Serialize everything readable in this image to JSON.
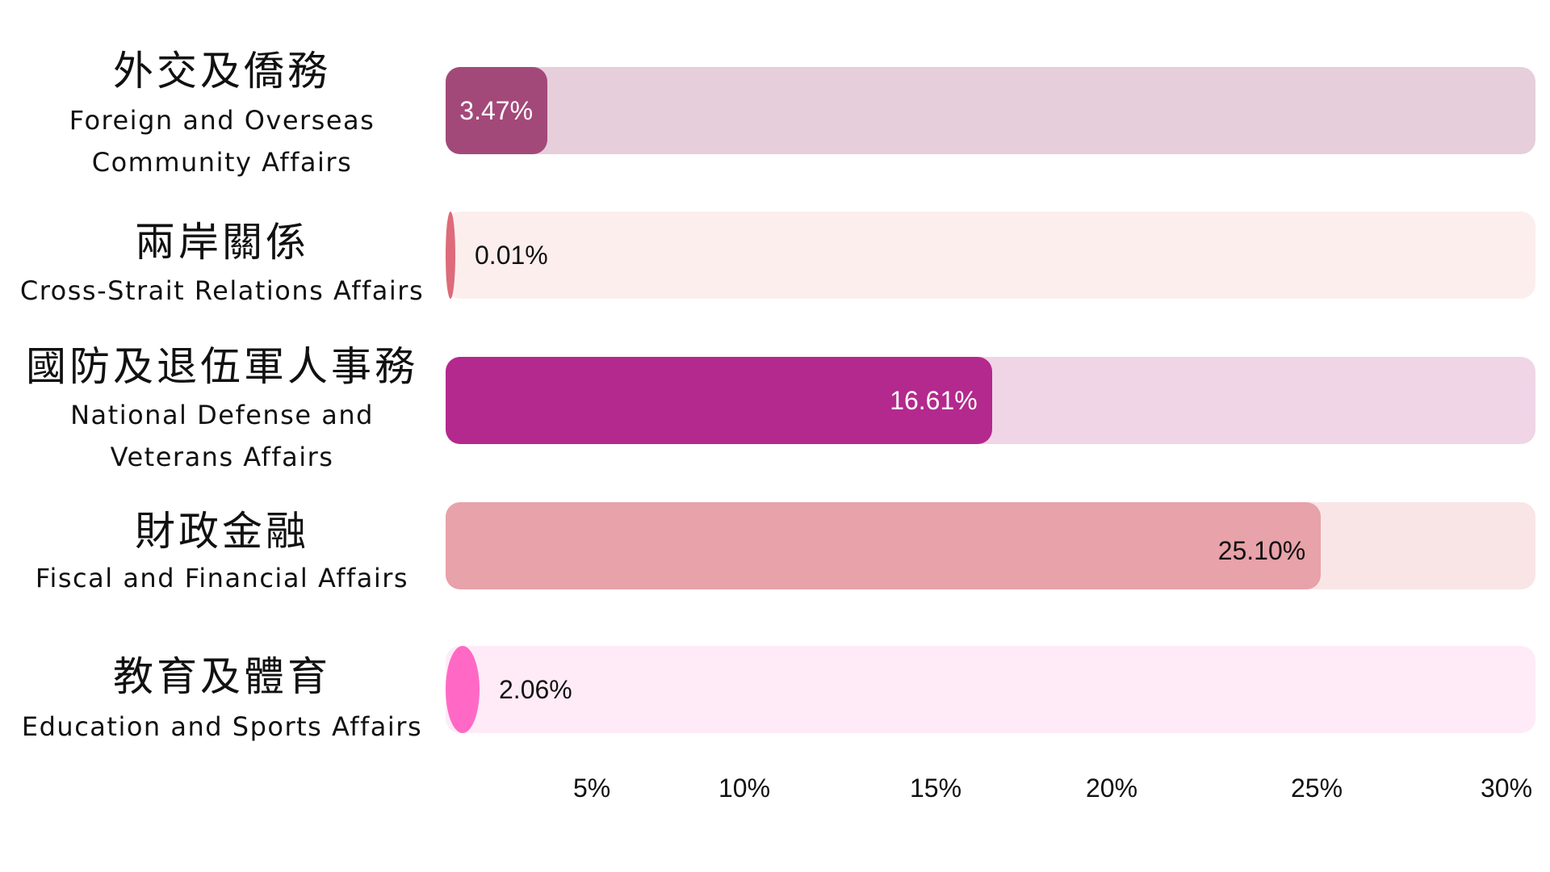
{
  "chart_data": {
    "type": "bar",
    "orientation": "horizontal",
    "title": "",
    "xlabel": "",
    "ylabel": "",
    "xlim": [
      0,
      30
    ],
    "grid": false,
    "legend": "none",
    "categories": [
      {
        "label_zh": "外交及僑務",
        "label_en": "Foreign and Overseas Community Affairs",
        "value": 3.47,
        "value_label": "3.47%",
        "bar_color": "#a3497a",
        "track_color": "#e6ceda",
        "label_color": "#ffffff"
      },
      {
        "label_zh": "兩岸關係",
        "label_en": "Cross-Strait Relations Affairs",
        "value": 0.01,
        "value_label": "0.01%",
        "bar_color": "#dd6b7a",
        "track_color": "#fdeeee",
        "label_color": "#111111"
      },
      {
        "label_zh": "國防及退伍軍人事務",
        "label_en": "National Defense and Veterans Affairs",
        "value": 16.61,
        "value_label": "16.61%",
        "bar_color": "#b3298d",
        "track_color": "#efd5e6",
        "label_color": "#ffffff"
      },
      {
        "label_zh": "財政金融",
        "label_en": "Fiscal and Financial Affairs",
        "value": 25.1,
        "value_label": "25.10%",
        "bar_color": "#e8a2a9",
        "track_color": "#f9e5e6",
        "label_color": "#111111"
      },
      {
        "label_zh": "教育及體育",
        "label_en": "Education and Sports Affairs",
        "value": 2.06,
        "value_label": "2.06%",
        "bar_color": "#ff69c5",
        "track_color": "#ffebf7",
        "label_color": "#111111"
      }
    ],
    "x_ticks": [
      {
        "value": 5,
        "label": "5%"
      },
      {
        "value": 10,
        "label": "10%"
      },
      {
        "value": 15,
        "label": "15%"
      },
      {
        "value": 20,
        "label": "20%"
      },
      {
        "value": 25,
        "label": "25%"
      },
      {
        "value": 30,
        "label": "30%"
      }
    ]
  }
}
